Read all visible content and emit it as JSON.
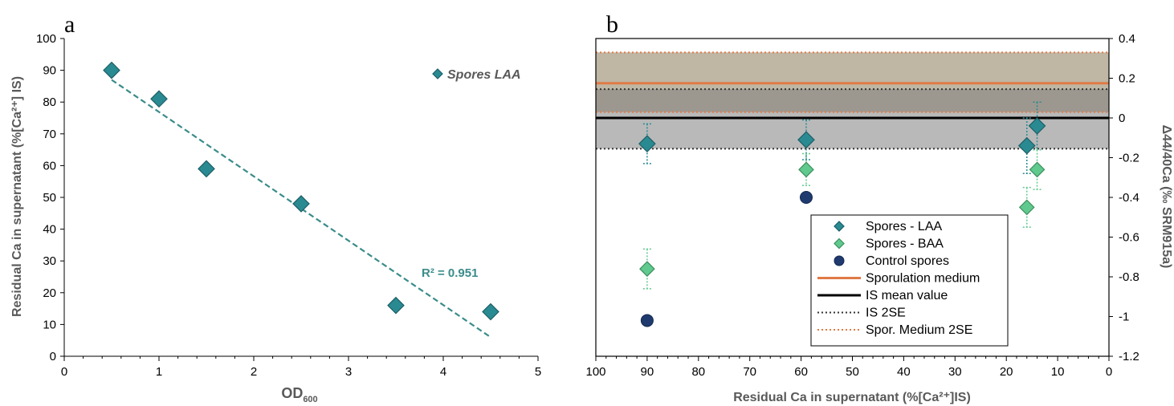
{
  "colors": {
    "laa_fill": "#2a8a92",
    "laa_stroke": "#1d5f66",
    "baa_fill": "#5fc98e",
    "baa_stroke": "#3c8f5e",
    "control_fill": "#1f3a6e",
    "control_stroke": "#142850",
    "trend": "#3a8c8a",
    "sporulation": "#e07a45",
    "is_mean": "#000000",
    "band_is": "#7f7f7f",
    "band_spor": "#8a7a5a",
    "r2_text": "#3a8c8a"
  },
  "chart_data": [
    {
      "panel": "a",
      "type": "scatter",
      "xlabel_main": "OD",
      "xlabel_sub": "600",
      "ylabel": "Residual Ca in supernatant (%[Ca²⁺] IS)",
      "xlim": [
        0,
        5
      ],
      "ylim": [
        0,
        100
      ],
      "xticks": [
        "0",
        "1",
        "2",
        "3",
        "4",
        "5"
      ],
      "yticks": [
        "0",
        "10",
        "20",
        "30",
        "40",
        "50",
        "60",
        "70",
        "80",
        "90",
        "100"
      ],
      "legend": "top-right",
      "series": [
        {
          "name": "Spores LAA",
          "x": [
            0.5,
            1.0,
            1.5,
            2.5,
            3.5,
            4.5
          ],
          "y": [
            90,
            81,
            59,
            48,
            16,
            14
          ]
        }
      ],
      "trendline": {
        "x": [
          0.5,
          4.5
        ],
        "y": [
          87,
          6
        ]
      },
      "annotation": "R² = 0.951"
    },
    {
      "panel": "b",
      "type": "scatter",
      "xlabel": "Residual Ca in supernatant (%[Ca²⁺]IS)",
      "ylabel": "Δ44/40Ca (‰ SRM915a)",
      "xlim": [
        100,
        0
      ],
      "ylim": [
        -1.2,
        0.4
      ],
      "xticks": [
        "100",
        "90",
        "80",
        "70",
        "60",
        "50",
        "40",
        "30",
        "20",
        "10",
        "0"
      ],
      "yticks": [
        "0.4",
        "0.2",
        "0",
        "-0.2",
        "-0.4",
        "-0.6",
        "-0.8",
        "-1",
        "-1.2"
      ],
      "legend": "bottom-right",
      "series": [
        {
          "name": "Spores - LAA",
          "x": [
            90,
            59,
            16,
            14
          ],
          "y": [
            -0.13,
            -0.11,
            -0.14,
            -0.04
          ],
          "err": [
            0.1,
            0.1,
            0.14,
            0.12
          ]
        },
        {
          "name": "Spores - BAA",
          "x": [
            90,
            59,
            16,
            14
          ],
          "y": [
            -0.76,
            -0.26,
            -0.45,
            -0.26
          ],
          "err": [
            0.1,
            0.08,
            0.1,
            0.1
          ]
        },
        {
          "name": "Control spores",
          "x": [
            90,
            59
          ],
          "y": [
            -1.02,
            -0.4
          ]
        }
      ],
      "lines": [
        {
          "name": "Sporulation medium",
          "y": 0.175
        },
        {
          "name": "IS mean value",
          "y": 0.0
        },
        {
          "name": "IS 2SE",
          "y_low": -0.155,
          "y_high": 0.145
        },
        {
          "name": "Spor. Medium 2SE",
          "y_low": 0.03,
          "y_high": 0.33
        }
      ]
    }
  ]
}
